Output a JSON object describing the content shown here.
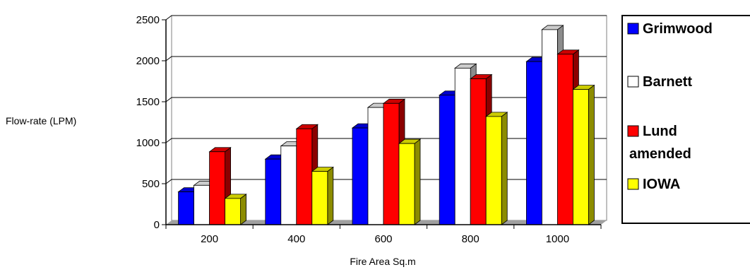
{
  "chart_data": {
    "type": "bar",
    "style": "3d-clustered-column",
    "categories": [
      "200",
      "400",
      "600",
      "800",
      "1000"
    ],
    "series": [
      {
        "name": "Grimwood",
        "color": "#0000ff",
        "values": [
          400,
          800,
          1180,
          1580,
          1990
        ]
      },
      {
        "name": "Barnett",
        "color": "#ffffff",
        "values": [
          480,
          960,
          1430,
          1910,
          2380
        ]
      },
      {
        "name": "Lund amended",
        "color": "#ff0000",
        "values": [
          890,
          1170,
          1480,
          1780,
          2080
        ]
      },
      {
        "name": "IOWA",
        "color": "#ffff00",
        "values": [
          320,
          650,
          990,
          1320,
          1650
        ]
      }
    ],
    "xlabel": "Fire Area Sq.m",
    "ylabel": "Flow-rate (LPM)",
    "yticks": [
      "0",
      "500",
      "1000",
      "1500",
      "2000",
      "2500"
    ],
    "ylim": [
      0,
      2500
    ],
    "grid": true,
    "legend_position": "right",
    "legend": {
      "entries": [
        {
          "series": 0,
          "lines": [
            "Grimwood"
          ]
        },
        {
          "series": 1,
          "lines": [
            "Barnett"
          ]
        },
        {
          "series": 2,
          "lines": [
            "Lund",
            "amended"
          ]
        },
        {
          "series": 3,
          "lines": [
            "IOWA"
          ]
        }
      ]
    }
  }
}
